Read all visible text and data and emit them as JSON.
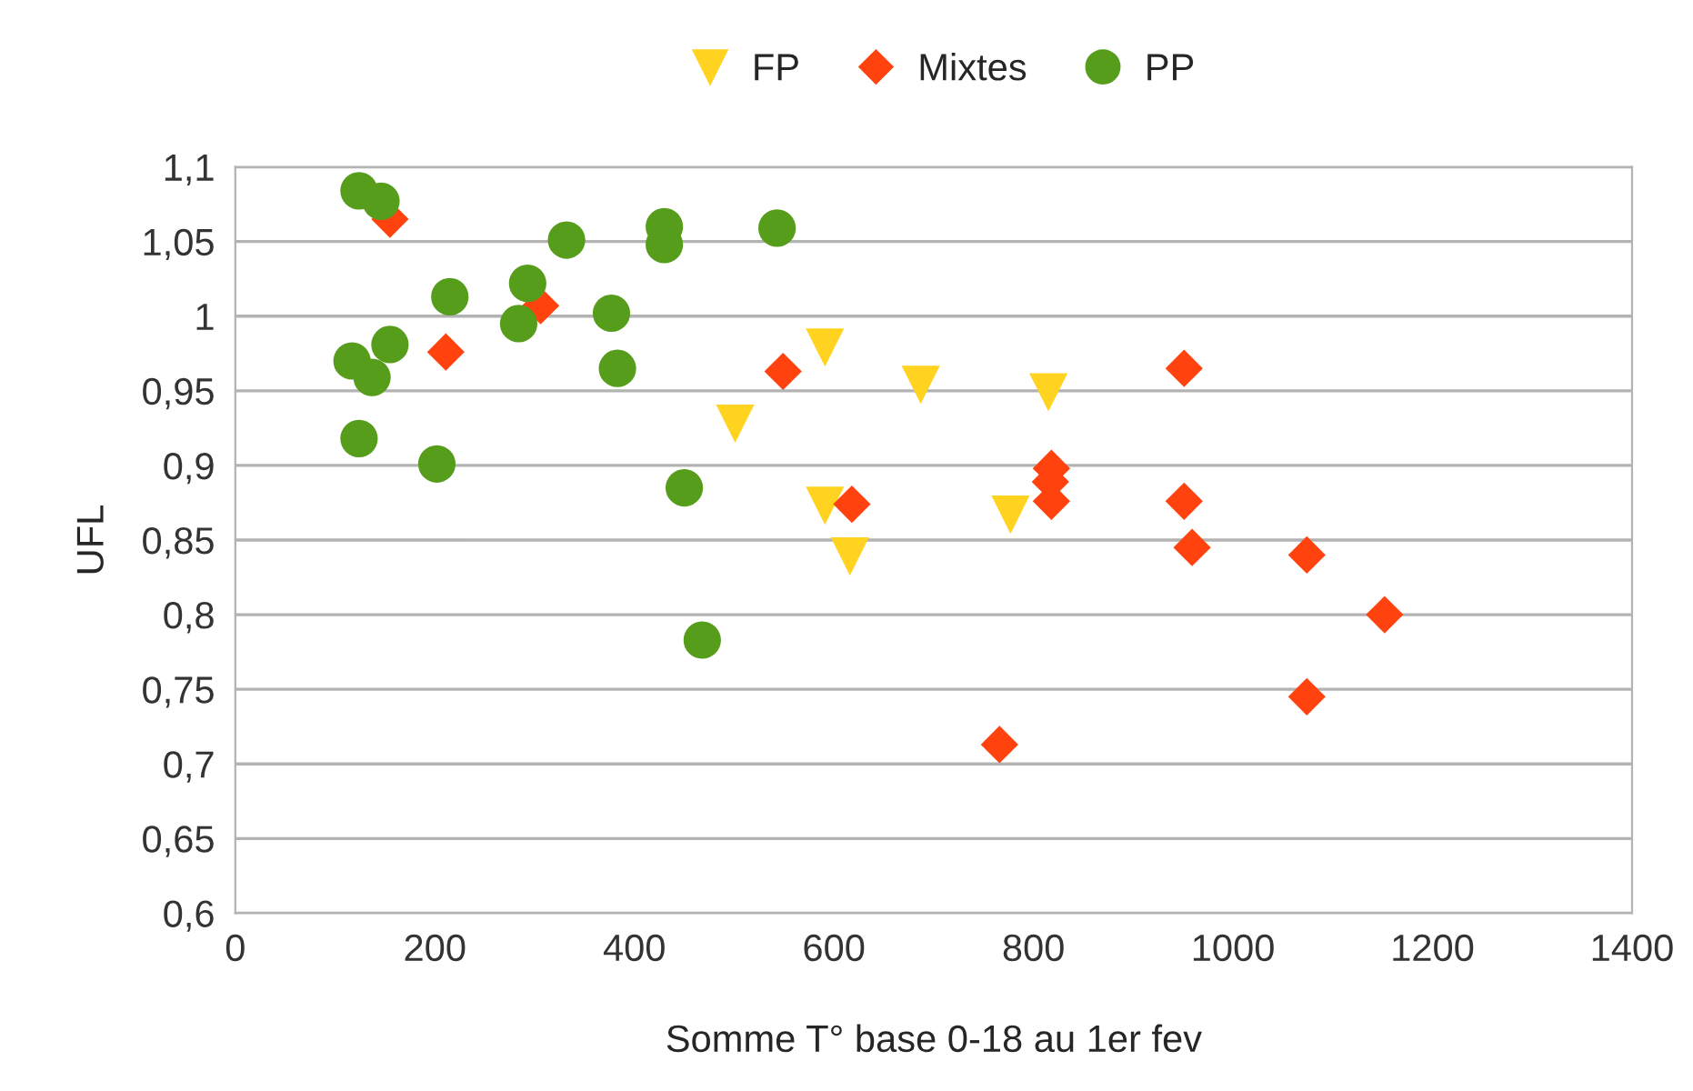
{
  "chart_data": {
    "type": "scatter",
    "xlabel": "Somme T° base 0-18 au 1er fev",
    "ylabel": "UFL",
    "xlim": [
      0,
      1400
    ],
    "xticks": [
      0,
      200,
      400,
      600,
      800,
      1000,
      1200,
      1400
    ],
    "ylim": [
      0.6,
      1.1
    ],
    "yticks": [
      {
        "value": 0.6,
        "label": "0,6"
      },
      {
        "value": 0.65,
        "label": "0,65"
      },
      {
        "value": 0.7,
        "label": "0,7"
      },
      {
        "value": 0.75,
        "label": "0,75"
      },
      {
        "value": 0.8,
        "label": "0,8"
      },
      {
        "value": 0.85,
        "label": "0,85"
      },
      {
        "value": 0.9,
        "label": "0,9"
      },
      {
        "value": 0.95,
        "label": "0,95"
      },
      {
        "value": 1,
        "label": "1"
      },
      {
        "value": 1.05,
        "label": "1,05"
      },
      {
        "value": 1.1,
        "label": "1,1"
      }
    ],
    "grid": "y",
    "legend": "top",
    "series": [
      {
        "name": "FP",
        "color": "#ffd320",
        "marker": "triangle",
        "x": [
          591,
          501,
          687,
          815,
          591,
          616,
          777
        ],
        "values": [
          0.979,
          0.928,
          0.954,
          0.949,
          0.873,
          0.839,
          0.867
        ]
      },
      {
        "name": "Mixtes",
        "color": "#ff420e",
        "marker": "diamond",
        "x": [
          155,
          211,
          306,
          549,
          618,
          766,
          818,
          817,
          818,
          951,
          951,
          959,
          1074,
          1074,
          1152
        ],
        "values": [
          1.065,
          0.976,
          1.007,
          0.963,
          0.874,
          0.713,
          0.898,
          0.889,
          0.876,
          0.965,
          0.876,
          0.845,
          0.84,
          0.745,
          0.8
        ]
      },
      {
        "name": "PP",
        "color": "#579d1c",
        "marker": "circle",
        "x": [
          124,
          146,
          117,
          137,
          155,
          124,
          202,
          215,
          293,
          284,
          332,
          377,
          383,
          430,
          430,
          450,
          468,
          543
        ],
        "values": [
          1.084,
          1.077,
          0.97,
          0.959,
          0.981,
          0.918,
          0.901,
          1.013,
          1.022,
          0.995,
          1.051,
          1.002,
          0.965,
          1.06,
          1.048,
          0.885,
          0.783,
          1.059
        ]
      }
    ]
  }
}
